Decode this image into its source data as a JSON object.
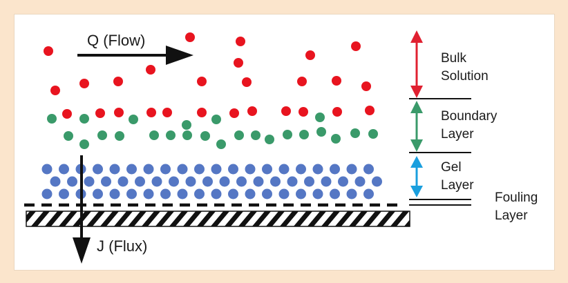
{
  "labels": {
    "flow": "Q (Flow)",
    "flux": "J (Flux)",
    "bulk_1": "Bulk",
    "bulk_2": "Solution",
    "boundary_1": "Boundary",
    "boundary_2": "Layer",
    "gel_1": "Gel",
    "gel_2": "Layer",
    "fouling_1": "Fouling",
    "fouling_2": "Layer"
  },
  "colors": {
    "background": "#fbe5cc",
    "panel": "#ffffff",
    "bulk_particle": "#e8141f",
    "boundary_particle": "#3a9a6a",
    "gel_particle": "#5577c4",
    "bulk_arrow": "#e02030",
    "boundary_arrow": "#3a9a6a",
    "gel_arrow": "#1a9fde",
    "ink": "#111111"
  },
  "icons": {
    "flow": "flow-arrow-icon",
    "flux": "flux-arrow-icon"
  }
}
